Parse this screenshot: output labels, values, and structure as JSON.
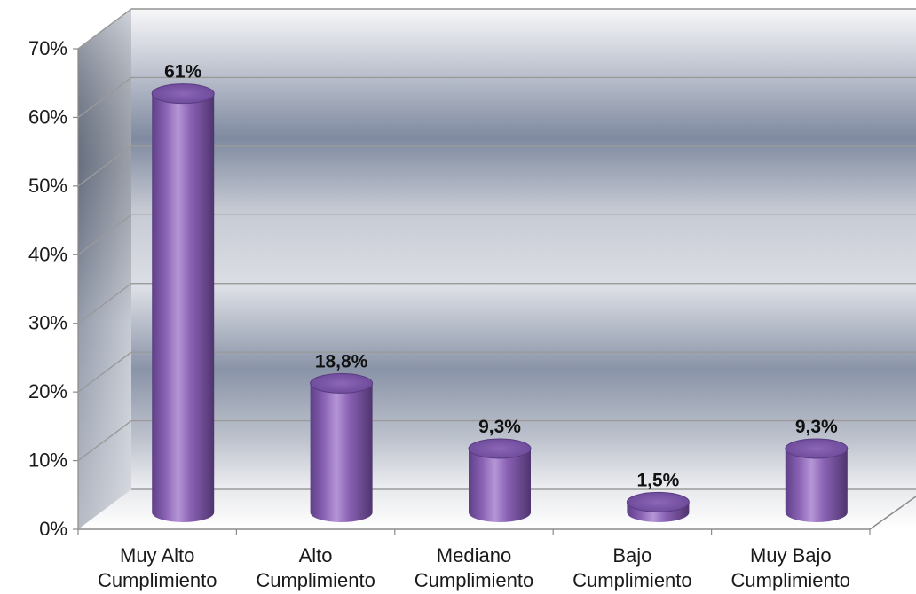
{
  "chart_data": {
    "type": "bar",
    "categories": [
      [
        "Muy Alto",
        "Cumplimiento"
      ],
      [
        "Alto",
        "Cumplimiento"
      ],
      [
        "Mediano",
        "Cumplimiento"
      ],
      [
        "Bajo",
        "Cumplimiento"
      ],
      [
        "Muy Bajo",
        "Cumplimiento"
      ]
    ],
    "values": [
      61,
      18.8,
      9.3,
      1.5,
      9.3
    ],
    "data_labels": [
      "61%",
      "18,8%",
      "9,3%",
      "1,5%",
      "9,3%"
    ],
    "ylim": [
      0,
      70
    ],
    "yticks": [
      0,
      10,
      20,
      30,
      40,
      50,
      60,
      70
    ],
    "ytick_labels": [
      "0%",
      "10%",
      "20%",
      "30%",
      "40%",
      "50%",
      "60%",
      "70%"
    ],
    "title": "",
    "xlabel": "",
    "ylabel": "",
    "grid": true,
    "legend": "none",
    "bar_shape": "3d-cylinder",
    "colors": {
      "bar": "#8a62b4",
      "bar_dark": "#5e3f87",
      "bar_light": "#b696d6",
      "bar_top": "#7a56a8",
      "wall": "#8e9aae",
      "gridline": "#9a9a9a"
    }
  }
}
